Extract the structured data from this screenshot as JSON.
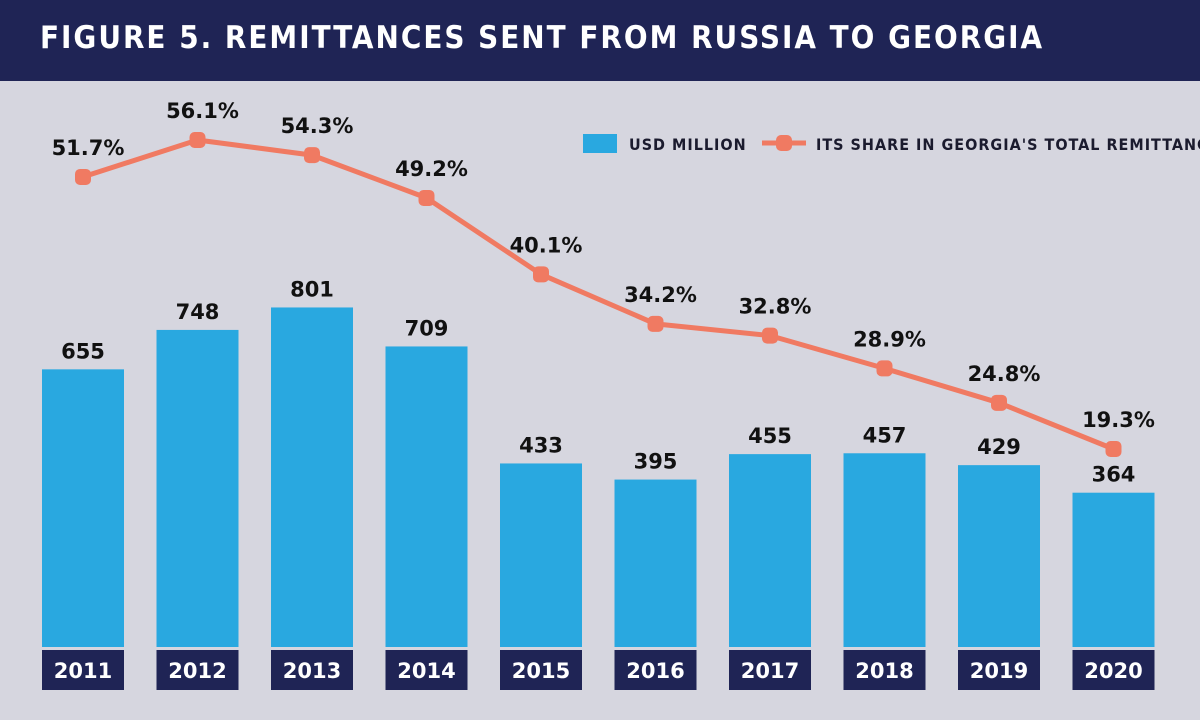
{
  "title": "FIGURE 5. REMITTANCES SENT FROM RUSSIA TO GEORGIA",
  "colors": {
    "background": "#d6d6df",
    "header": "#1f2455",
    "bar": "#29a8e0",
    "line": "#f07a62",
    "tick_box": "#1f2455"
  },
  "chart_data": {
    "type": "bar",
    "categories": [
      "2011",
      "2012",
      "2013",
      "2014",
      "2015",
      "2016",
      "2017",
      "2018",
      "2019",
      "2020"
    ],
    "series": [
      {
        "name": "USD MILLION",
        "type": "bar",
        "values": [
          655,
          748,
          801,
          709,
          433,
          395,
          455,
          457,
          429,
          364
        ],
        "labels": [
          "655",
          "748",
          "801",
          "709",
          "433",
          "395",
          "455",
          "457",
          "429",
          "364"
        ]
      },
      {
        "name": "ITS SHARE IN GEORGIA'S TOTAL REMITTANCES",
        "type": "line",
        "values": [
          51.7,
          56.1,
          54.3,
          49.2,
          40.1,
          34.2,
          32.8,
          28.9,
          24.8,
          19.3
        ],
        "labels": [
          "51.7%",
          "56.1%",
          "54.3%",
          "49.2%",
          "40.1%",
          "34.2%",
          "32.8%",
          "28.9%",
          "24.8%",
          "19.3%"
        ]
      }
    ],
    "legend_position": "top-right",
    "grid": false
  }
}
